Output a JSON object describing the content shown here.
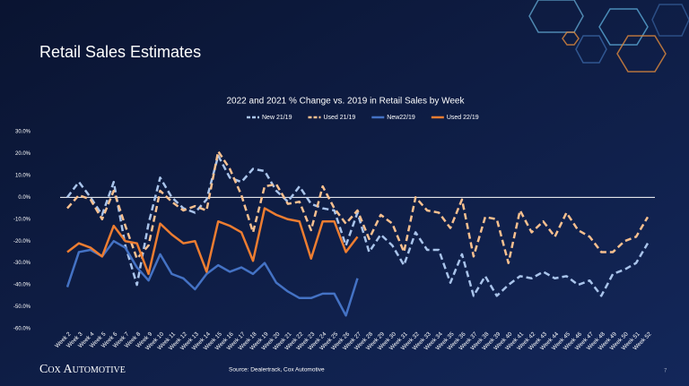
{
  "slide_title": "Retail Sales Estimates",
  "source": "Source: Dealertrack, Cox Automotive",
  "logo": "Cox Automotive",
  "page_number": "7",
  "chart_data": {
    "type": "line",
    "title": "2022 and 2021 % Change vs. 2019 in Retail Sales by Week",
    "categories": [
      "Week 2",
      "Week 3",
      "Week 4",
      "Week 5",
      "Week 6",
      "Week 7",
      "Week 8",
      "Week 9",
      "Week 10",
      "Week 11",
      "Week 12",
      "Week 13",
      "Week 14",
      "Week 15",
      "Week 16",
      "Week 17",
      "Week 18",
      "Week 19",
      "Week 20",
      "Week 21",
      "Week 22",
      "Week 23",
      "Week 24",
      "Week 25",
      "Week 26",
      "Week 27",
      "Week 28",
      "Week 29",
      "Week 30",
      "Week 31",
      "Week 32",
      "Week 33",
      "Week 34",
      "Week 35",
      "Week 36",
      "Week 37",
      "Week 38",
      "Week 39",
      "Week 40",
      "Week 41",
      "Week 42",
      "Week 43",
      "Week 44",
      "Week 45",
      "Week 46",
      "Week 47",
      "Week 48",
      "Week 49",
      "Week 50",
      "Week 51",
      "Week 52"
    ],
    "ylim": [
      -60,
      30
    ],
    "yticks": [
      {
        "value": 30,
        "label": "30.0%"
      },
      {
        "value": 20,
        "label": "20.0%"
      },
      {
        "value": 10,
        "label": "10.0%"
      },
      {
        "value": 0,
        "label": "0.0%"
      },
      {
        "value": -10,
        "label": "-10.0%"
      },
      {
        "value": -20,
        "label": "-20.0%"
      },
      {
        "value": -30,
        "label": "-30.0%"
      },
      {
        "value": -40,
        "label": "-40.0%"
      },
      {
        "value": -50,
        "label": "-50.0%"
      },
      {
        "value": -60,
        "label": "-60.0%"
      }
    ],
    "grid": false,
    "legend": "top",
    "series": [
      {
        "name": "New 21/19",
        "color": "#a9c4eb",
        "dashed": true,
        "values": [
          0,
          7,
          0,
          -8,
          7,
          -22,
          -40,
          -12,
          9,
          0,
          -5,
          -7,
          -1,
          19,
          9,
          7,
          13,
          12,
          3,
          -2,
          5,
          -3,
          -5,
          -6,
          -22,
          -7,
          -25,
          -17,
          -22,
          -31,
          -16,
          -24,
          -24,
          -39,
          -26,
          -45,
          -36,
          -45,
          -40,
          -36,
          -37,
          -34,
          -37,
          -36,
          -40,
          -38,
          -45,
          -35,
          -33,
          -30,
          -21
        ]
      },
      {
        "name": "Used 21/19",
        "color": "#f8c08f",
        "dashed": true,
        "values": [
          -5,
          1,
          -1,
          -10,
          3,
          -13,
          -28,
          -22,
          3,
          -2,
          -6,
          -4,
          -6,
          21,
          13,
          1,
          -16,
          5,
          6,
          -3,
          -2,
          -15,
          5,
          -5,
          -12,
          -6,
          -19,
          -8,
          -12,
          -25,
          0,
          -6,
          -7,
          -14,
          -1,
          -27,
          -9,
          -10,
          -30,
          -6,
          -16,
          -11,
          -18,
          -7,
          -15,
          -18,
          -25,
          -25,
          -20,
          -18,
          -9
        ]
      },
      {
        "name": "New22/19",
        "color": "#4472c4",
        "dashed": false,
        "values": [
          -41,
          -25,
          -24,
          -27,
          -20,
          -23,
          -32,
          -38,
          -26,
          -35,
          -37,
          -42,
          -35,
          -31,
          -34,
          -32,
          -35,
          -30,
          -39,
          -43,
          -46,
          -46,
          -44,
          -44,
          -54,
          -37,
          null,
          null,
          null,
          null,
          null,
          null,
          null,
          null,
          null,
          null,
          null,
          null,
          null,
          null,
          null,
          null,
          null,
          null,
          null,
          null,
          null,
          null,
          null,
          null,
          null
        ]
      },
      {
        "name": "Used 22/19",
        "color": "#ed7d31",
        "dashed": false,
        "values": [
          -25,
          -21,
          -23,
          -27,
          -13,
          -20,
          -21,
          -35,
          -12,
          -17,
          -21,
          -20,
          -34,
          -11,
          -13,
          -16,
          -29,
          -5,
          -8,
          -10,
          -11,
          -28,
          -11,
          -11,
          -25,
          -18,
          null,
          null,
          null,
          null,
          null,
          null,
          null,
          null,
          null,
          null,
          null,
          null,
          null,
          null,
          null,
          null,
          null,
          null,
          null,
          null,
          null,
          null,
          null,
          null,
          null
        ]
      }
    ]
  }
}
